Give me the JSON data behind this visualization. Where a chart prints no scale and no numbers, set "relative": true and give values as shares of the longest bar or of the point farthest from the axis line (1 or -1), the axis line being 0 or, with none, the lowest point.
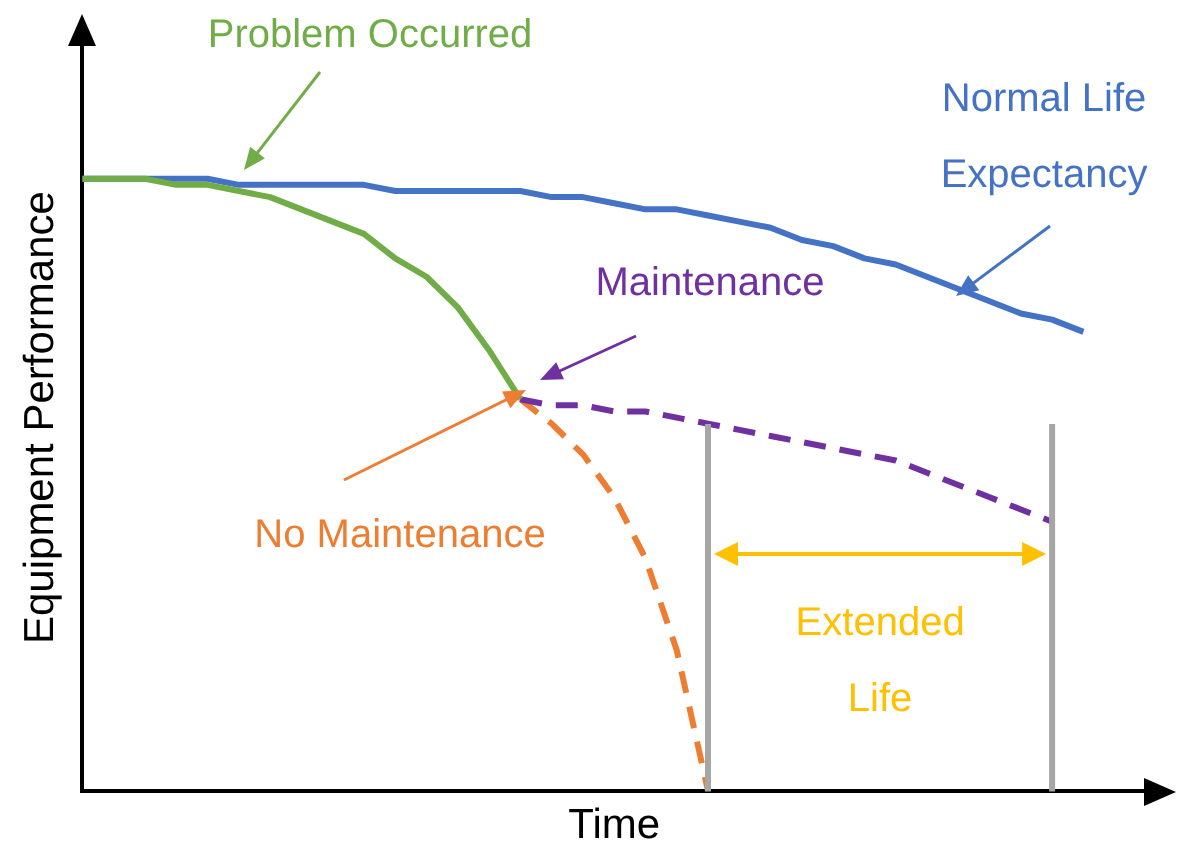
{
  "chart_data": {
    "type": "line",
    "relative": true,
    "xlabel": "Time",
    "ylabel": "Equipment Performance",
    "legend": false,
    "grid": false,
    "marker": "none",
    "categories": [
      null,
      null,
      null,
      null,
      null,
      null,
      null,
      null,
      null,
      null,
      null,
      null,
      null,
      null,
      null,
      null,
      null,
      null,
      null,
      null,
      null,
      null,
      null,
      null,
      null,
      null,
      null,
      null,
      null,
      null,
      null,
      null,
      null,
      null,
      null
    ],
    "series": [
      {
        "color": "#70ad47",
        "values": [
          1.0,
          1.0,
          1.0,
          0.99,
          0.99,
          0.98,
          0.97,
          0.95,
          0.93,
          0.91,
          0.87,
          0.84,
          0.79,
          0.72,
          0.64,
          null,
          null,
          null,
          null,
          null,
          null,
          null,
          null,
          null,
          null,
          null,
          null,
          null,
          null,
          null,
          null,
          null,
          null,
          null,
          null
        ]
      },
      {
        "color": "#4472c4",
        "values": [
          1.0,
          1.0,
          1.0,
          1.0,
          1.0,
          0.99,
          0.99,
          0.99,
          0.99,
          0.99,
          0.98,
          0.98,
          0.98,
          0.98,
          0.98,
          0.97,
          0.97,
          0.96,
          0.95,
          0.95,
          0.94,
          0.93,
          0.92,
          0.9,
          0.89,
          0.87,
          0.86,
          0.84,
          0.82,
          0.8,
          0.78,
          0.77,
          0.75,
          null,
          null
        ]
      },
      {
        "color": "#7030a0",
        "line_style": "dashed",
        "values": [
          null,
          null,
          null,
          null,
          null,
          null,
          null,
          null,
          null,
          null,
          null,
          null,
          null,
          null,
          0.64,
          0.63,
          0.63,
          0.62,
          0.62,
          0.61,
          0.6,
          0.59,
          0.58,
          0.57,
          0.56,
          0.55,
          0.54,
          0.52,
          0.5,
          0.48,
          0.46,
          0.44,
          null,
          null,
          null
        ]
      },
      {
        "color": "#ed7d31",
        "line_style": "dashed",
        "values": [
          null,
          null,
          null,
          null,
          null,
          null,
          null,
          null,
          null,
          null,
          null,
          null,
          null,
          null,
          0.64,
          0.6,
          0.55,
          0.48,
          0.38,
          0.23,
          0.0,
          null,
          null,
          null,
          null,
          null,
          null,
          null,
          null,
          null,
          null,
          null,
          null,
          null,
          null
        ]
      }
    ],
    "annotations": [
      "Problem Occurred",
      "Normal Life Expectancy",
      "Maintenance",
      "No Maintenance",
      "Extended Life"
    ]
  }
}
